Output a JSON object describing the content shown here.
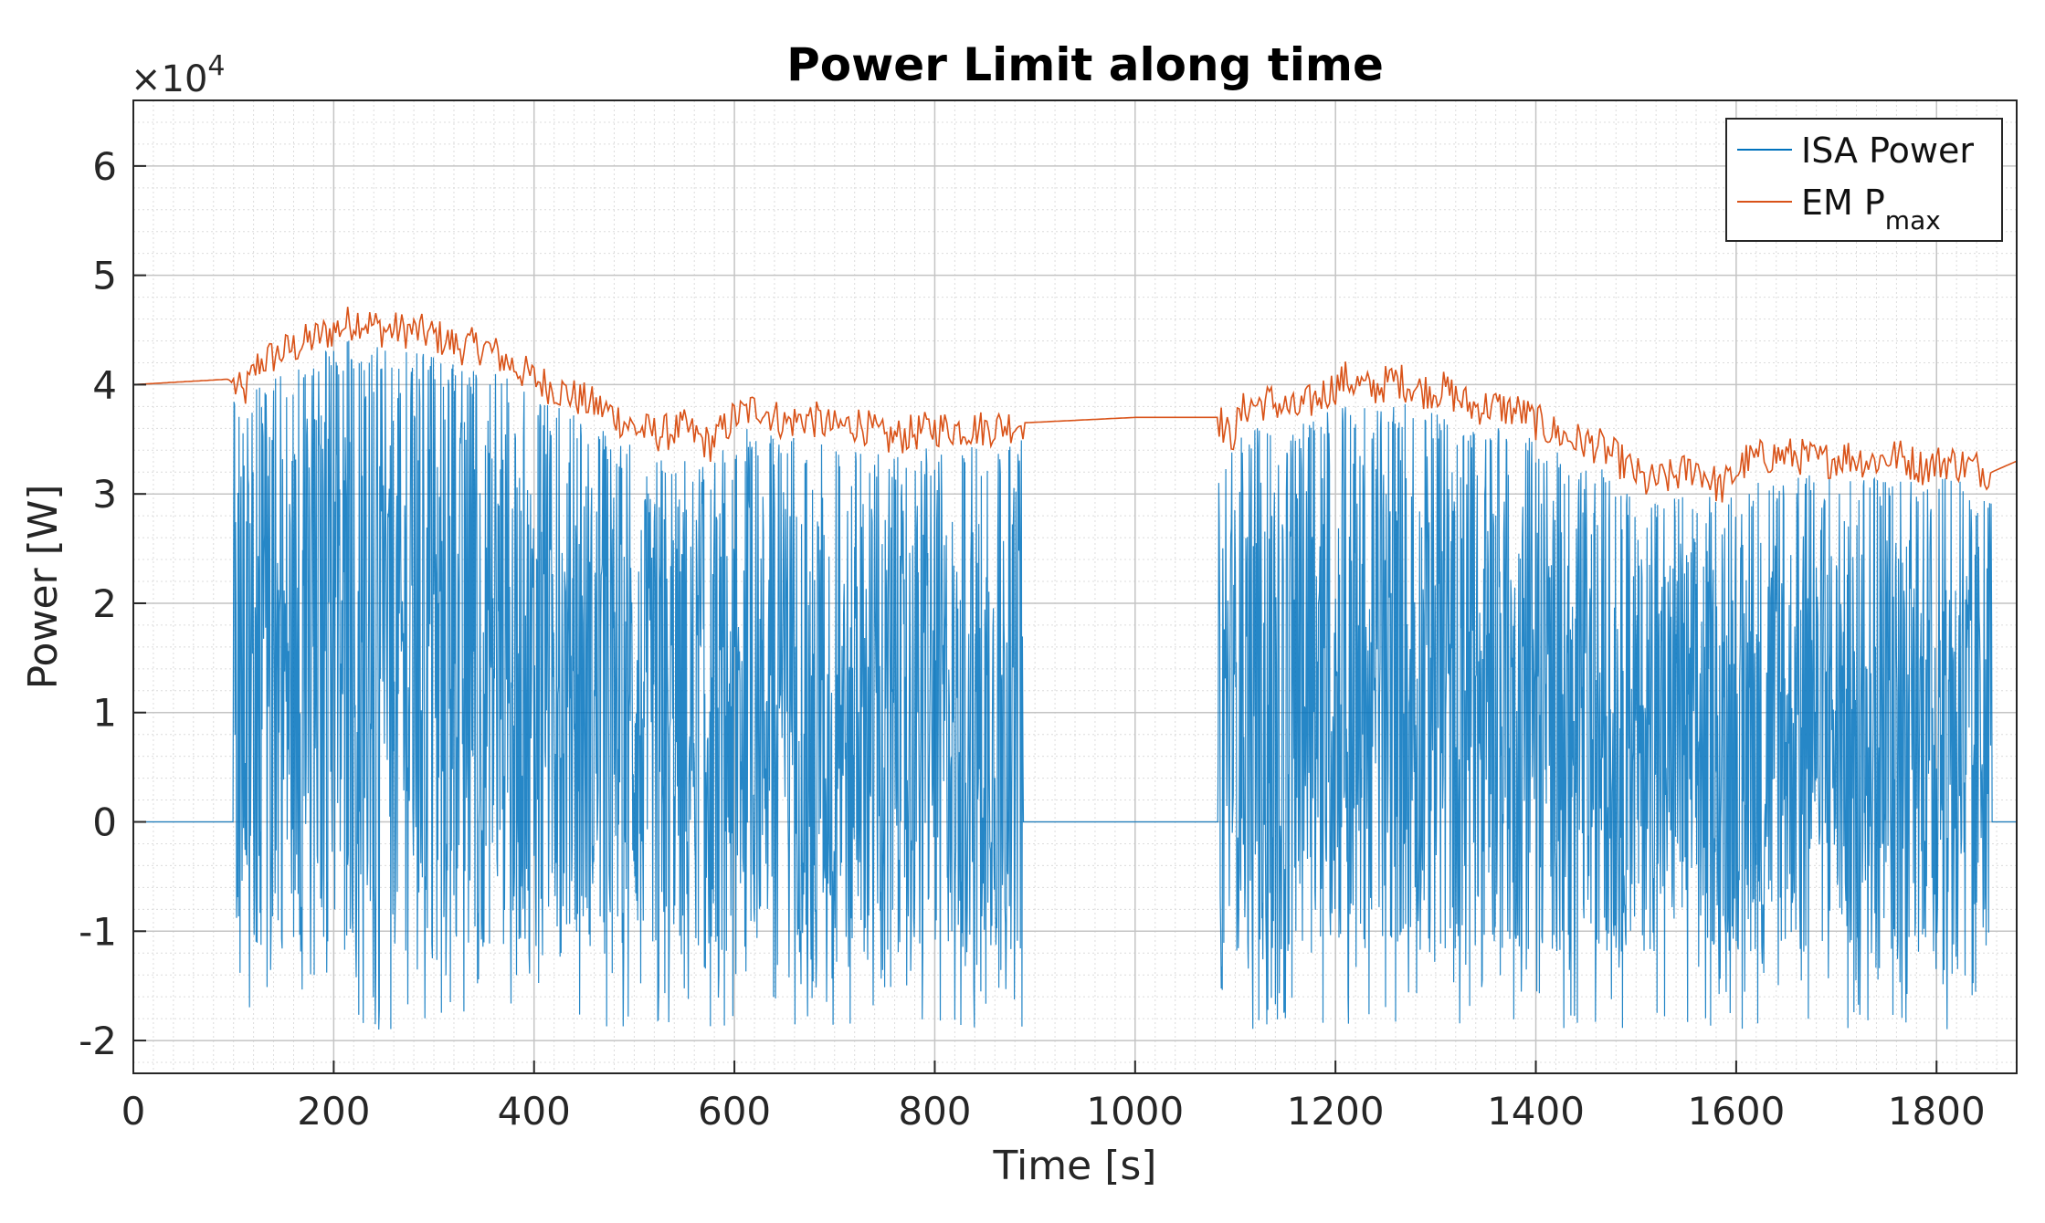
{
  "chart_data": {
    "type": "line",
    "title": "Power Limit along time",
    "xlabel": "Time [s]",
    "ylabel": "Power [W]",
    "y_exponent_label": "×10",
    "y_exponent_power": "4",
    "xlim": [
      0,
      1880
    ],
    "ylim": [
      -2.3,
      6.6
    ],
    "y_scale_factor": 10000,
    "x_ticks": [
      0,
      200,
      400,
      600,
      800,
      1000,
      1200,
      1400,
      1600,
      1800
    ],
    "x_tick_labels": [
      "0",
      "200",
      "400",
      "600",
      "800",
      "1000",
      "1200",
      "1400",
      "1600",
      "1800"
    ],
    "y_ticks": [
      -2,
      -1,
      0,
      1,
      2,
      3,
      4,
      5,
      6
    ],
    "y_tick_labels": [
      "-2",
      "-1",
      "0",
      "1",
      "2",
      "3",
      "4",
      "5",
      "6"
    ],
    "grid": true,
    "minor_grid": true,
    "legend_position": "top-right",
    "colors": {
      "isa": "#0072BD",
      "em": "#D95319"
    },
    "series": [
      {
        "name": "ISA Power",
        "color": "#0072BD",
        "style": "dense oscillating signal",
        "segments": [
          {
            "x": [
              0,
              100
            ],
            "y": [
              0,
              0
            ]
          },
          {
            "x_start": 100,
            "x_end": 888,
            "oscillating": true,
            "min_envelope": -1.3,
            "max_follows": "EM Pmax",
            "extreme_min": -2.3
          },
          {
            "x": [
              888,
              1083
            ],
            "y": [
              0,
              0
            ]
          },
          {
            "x_start": 1083,
            "x_end": 1855,
            "oscillating": true,
            "min_envelope": -1.3,
            "max_follows": "EM Pmax",
            "extreme_min": -2.1
          },
          {
            "x": [
              1855,
              1880
            ],
            "y": [
              0,
              0
            ]
          }
        ]
      },
      {
        "name": "EM P",
        "name_subscript": "max",
        "color": "#D95319",
        "x": [
          0,
          95,
          110,
          125,
          150,
          175,
          200,
          225,
          250,
          275,
          300,
          325,
          350,
          375,
          400,
          425,
          450,
          475,
          500,
          525,
          550,
          575,
          600,
          625,
          650,
          675,
          700,
          725,
          750,
          775,
          800,
          825,
          850,
          888,
          1000,
          1083,
          1095,
          1110,
          1135,
          1160,
          1185,
          1210,
          1235,
          1260,
          1285,
          1310,
          1335,
          1360,
          1385,
          1410,
          1435,
          1460,
          1485,
          1510,
          1535,
          1560,
          1585,
          1610,
          1635,
          1660,
          1685,
          1710,
          1735,
          1760,
          1785,
          1810,
          1835,
          1855,
          1880
        ],
        "y": [
          4.0,
          4.05,
          3.9,
          4.2,
          4.3,
          4.4,
          4.5,
          4.6,
          4.5,
          4.5,
          4.45,
          4.35,
          4.35,
          4.2,
          4.05,
          3.95,
          3.85,
          3.75,
          3.6,
          3.55,
          3.6,
          3.45,
          3.7,
          3.8,
          3.65,
          3.7,
          3.6,
          3.65,
          3.5,
          3.55,
          3.6,
          3.6,
          3.6,
          3.65,
          3.7,
          3.7,
          3.5,
          3.8,
          3.85,
          3.75,
          3.9,
          4.05,
          3.95,
          4.05,
          3.95,
          3.95,
          3.8,
          3.8,
          3.75,
          3.6,
          3.5,
          3.45,
          3.3,
          3.1,
          3.15,
          3.25,
          3.05,
          3.3,
          3.35,
          3.35,
          3.3,
          3.35,
          3.3,
          3.35,
          3.25,
          3.3,
          3.25,
          3.2,
          3.3
        ]
      }
    ]
  }
}
